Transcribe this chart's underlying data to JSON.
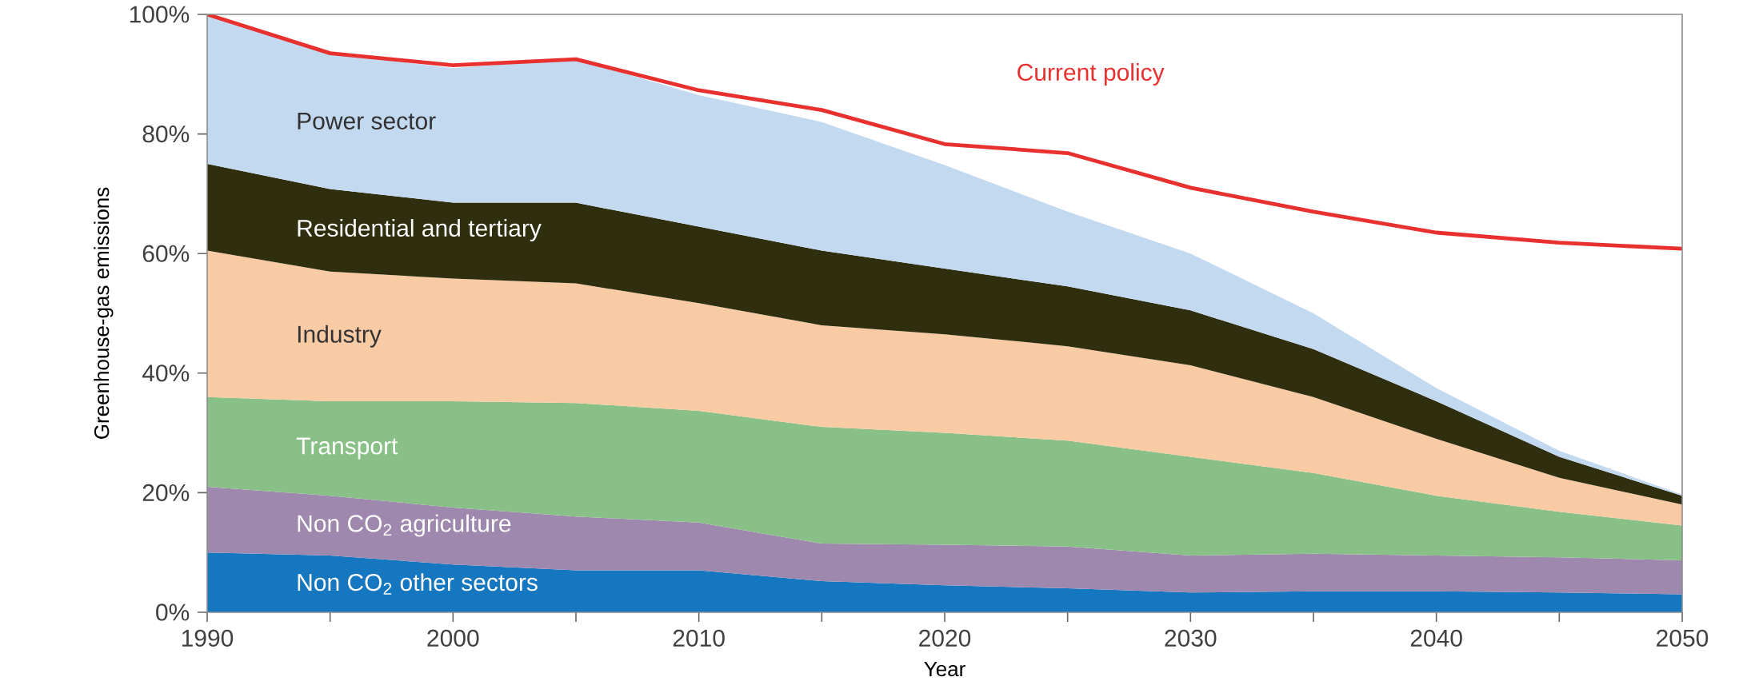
{
  "chart_data": {
    "type": "area",
    "stacked": true,
    "xlabel": "Year",
    "ylabel": "Greenhouse-gas emissions",
    "x": [
      1990,
      1995,
      2000,
      2005,
      2010,
      2015,
      2020,
      2025,
      2030,
      2035,
      2040,
      2045,
      2050
    ],
    "xlim": [
      1990,
      2050
    ],
    "ylim": [
      0,
      100
    ],
    "xticks": [
      1990,
      {
        "value": 1995,
        "label": null
      },
      2000,
      {
        "value": 2005,
        "label": null
      },
      2010,
      {
        "value": 2015,
        "label": null
      },
      2020,
      {
        "value": 2025,
        "label": null
      },
      2030,
      {
        "value": 2035,
        "label": null
      },
      2040,
      {
        "value": 2045,
        "label": null
      },
      2050
    ],
    "yticks": [
      {
        "value": 0,
        "label": "0%"
      },
      {
        "value": 20,
        "label": "20%"
      },
      {
        "value": 40,
        "label": "40%"
      },
      {
        "value": 60,
        "label": "60%"
      },
      {
        "value": 80,
        "label": "80%"
      },
      {
        "value": 100,
        "label": "100%"
      }
    ],
    "series": [
      {
        "name": "Non CO$_{2}$ other sectors",
        "color": "#1677c1",
        "values": [
          10,
          9.5,
          8,
          7,
          7,
          5.2,
          4.5,
          4,
          3.3,
          3.5,
          3.5,
          3.3,
          3
        ]
      },
      {
        "name": "Non CO$_{2}$ agriculture",
        "color": "#9e88ad",
        "values": [
          11,
          10,
          9.5,
          9,
          8,
          6.3,
          6.8,
          7,
          6.2,
          6.3,
          6,
          5.9,
          5.7
        ]
      },
      {
        "name": "Transport",
        "color": "#89c087",
        "values": [
          15,
          15.8,
          17.8,
          19,
          18.7,
          19.5,
          18.7,
          17.7,
          16.5,
          13.5,
          10,
          7.6,
          5.8
        ]
      },
      {
        "name": "Industry",
        "color": "#f9cba5",
        "values": [
          24.5,
          21.7,
          20.5,
          20,
          18,
          17,
          16.5,
          15.8,
          15.3,
          12.7,
          9.5,
          5.7,
          3.5
        ]
      },
      {
        "name": "Residential and tertiary",
        "color": "#2f2f10",
        "values": [
          14.5,
          13.8,
          12.7,
          13.5,
          12.8,
          12.5,
          11,
          10,
          9.2,
          8,
          6.3,
          3.5,
          1.5
        ]
      },
      {
        "name": "Power sector",
        "color": "#c3d9f0",
        "values": [
          25,
          22.7,
          22.5,
          24,
          22,
          21.5,
          17.3,
          12.5,
          9.5,
          6,
          2.2,
          1,
          0.2
        ]
      },
      {
        "name": "Current policy",
        "type": "line",
        "color": "#e8312e",
        "values": [
          100,
          93.5,
          91.5,
          92.5,
          87.3,
          84,
          78.3,
          76.8,
          71,
          67,
          63.5,
          61.8,
          60.8
        ]
      }
    ]
  }
}
